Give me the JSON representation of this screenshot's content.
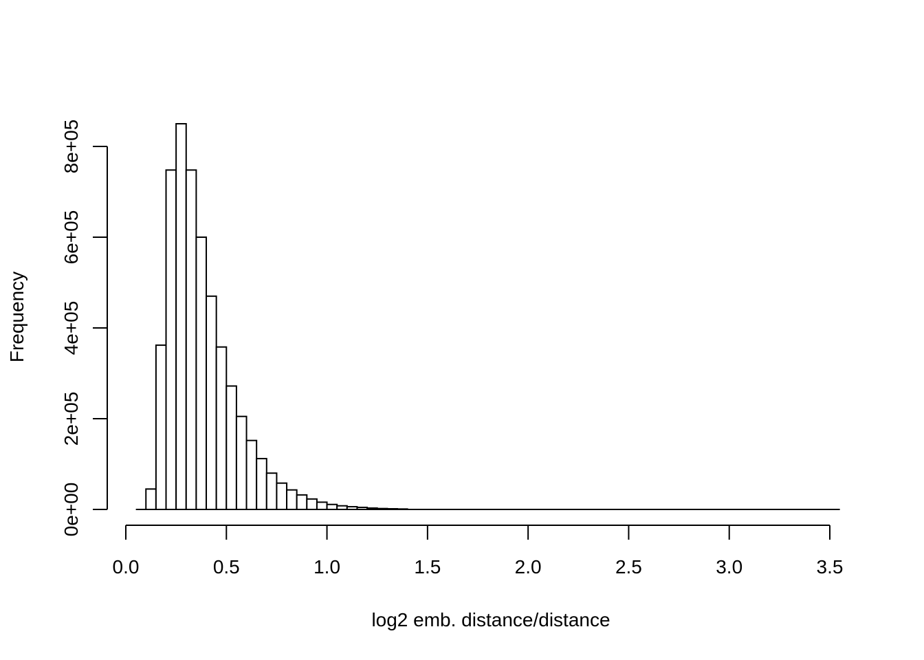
{
  "chart_data": {
    "type": "bar",
    "subtype": "histogram",
    "title": "",
    "xlabel": "log2 emb. distance/distance",
    "ylabel": "Frequency",
    "xlim": [
      0.0,
      3.5
    ],
    "ylim": [
      0,
      800000
    ],
    "x_ticks": [
      0.0,
      0.5,
      1.0,
      1.5,
      2.0,
      2.5,
      3.0,
      3.5
    ],
    "x_tick_labels": [
      "0.0",
      "0.5",
      "1.0",
      "1.5",
      "2.0",
      "2.5",
      "3.0",
      "3.5"
    ],
    "y_ticks": [
      0,
      200000,
      400000,
      600000,
      800000
    ],
    "y_tick_labels": [
      "0e+00",
      "2e+05",
      "4e+05",
      "6e+05",
      "8e+05"
    ],
    "bin_width": 0.05,
    "bins_start": [
      0.05,
      0.1,
      0.15,
      0.2,
      0.25,
      0.3,
      0.35,
      0.4,
      0.45,
      0.5,
      0.55,
      0.6,
      0.65,
      0.7,
      0.75,
      0.8,
      0.85,
      0.9,
      0.95,
      1.0,
      1.05,
      1.1,
      1.15,
      1.2,
      1.25,
      1.3,
      1.35,
      1.4,
      1.45,
      1.5
    ],
    "values": [
      0,
      45000,
      362000,
      748000,
      850000,
      748000,
      600000,
      470000,
      358000,
      272000,
      205000,
      152000,
      112000,
      80000,
      58000,
      43000,
      32000,
      23000,
      16000,
      11000,
      8000,
      6000,
      4500,
      3000,
      2000,
      1500,
      1000,
      0,
      0,
      0
    ],
    "grid": false,
    "legend": "none",
    "x_range_drawn": [
      0.05,
      3.55
    ],
    "colors": {
      "bar_fill": "#ffffff",
      "bar_stroke": "#000000"
    }
  }
}
